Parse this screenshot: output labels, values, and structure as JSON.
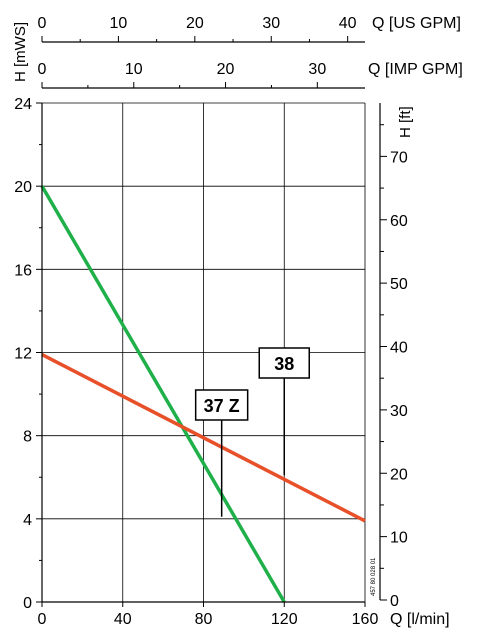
{
  "chart_data": {
    "type": "line",
    "x": {
      "label": "Q [l/min]",
      "range": [
        0,
        160
      ],
      "ticks": [
        0,
        40,
        80,
        120,
        160
      ]
    },
    "y": {
      "label": "H [mWS]",
      "range": [
        0,
        24
      ],
      "ticks": [
        0,
        4,
        8,
        12,
        16,
        20,
        24
      ]
    },
    "y2": {
      "label": "H [ft]",
      "ticks": [
        0,
        10,
        20,
        30,
        40,
        50,
        60,
        70
      ]
    },
    "top_axes": [
      {
        "label": "Q [US GPM]",
        "ticks": [
          0,
          10,
          20,
          30,
          40
        ]
      },
      {
        "label": "Q [IMP GPM]",
        "ticks": [
          0,
          10,
          20,
          30
        ]
      }
    ],
    "series": [
      {
        "name": "37 Z",
        "color": "#1fb04a",
        "points": [
          [
            0,
            20
          ],
          [
            120,
            0
          ]
        ],
        "label_anchor": [
          89,
          4.1
        ]
      },
      {
        "name": "38",
        "color": "#e8502a",
        "points": [
          [
            0,
            11.9
          ],
          [
            160,
            3.9
          ]
        ],
        "label_anchor": [
          120,
          6.1
        ]
      }
    ],
    "grid": true,
    "legend": "none",
    "watermark": "457 80 028 01"
  }
}
